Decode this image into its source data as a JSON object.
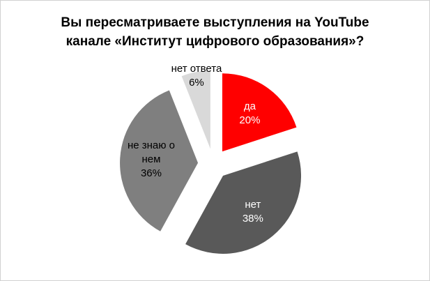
{
  "chart_data": {
    "type": "pie",
    "title": "Вы пересматриваете выступления на YouTube канале «Институт цифрового образования»?",
    "categories": [
      "да",
      "нет",
      "не знаю о нем",
      "нет ответа"
    ],
    "values": [
      20,
      38,
      36,
      6
    ],
    "value_labels": [
      "20%",
      "38%",
      "36%",
      "6%"
    ],
    "colors": [
      "#ff0000",
      "#595959",
      "#7f7f7f",
      "#d9d9d9"
    ],
    "exploded": true
  }
}
